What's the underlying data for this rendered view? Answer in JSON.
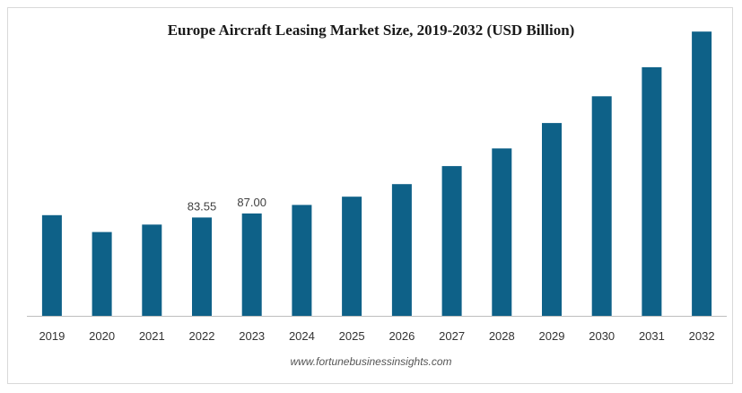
{
  "title": "Europe Aircraft Leasing Market Size, 2019-2032 (USD Billion)",
  "source": "www.fortunebusinessinsights.com",
  "chart_data": {
    "type": "bar",
    "title": "Europe Aircraft Leasing Market Size, 2019-2032 (USD Billion)",
    "xlabel": "",
    "ylabel": "",
    "categories": [
      "2019",
      "2020",
      "2021",
      "2022",
      "2023",
      "2024",
      "2025",
      "2026",
      "2027",
      "2028",
      "2029",
      "2030",
      "2031",
      "2032"
    ],
    "values": [
      85.5,
      71.2,
      77.5,
      83.55,
      87.0,
      94.2,
      101.2,
      111.9,
      127.2,
      142.2,
      163.8,
      186.5,
      211.2,
      241.5
    ],
    "data_labels": [
      {
        "index": 3,
        "text": "83.55"
      },
      {
        "index": 4,
        "text": "87.00"
      }
    ],
    "ylim": [
      0,
      250
    ],
    "grid": false,
    "legend": "none",
    "color": "#0e6188"
  }
}
